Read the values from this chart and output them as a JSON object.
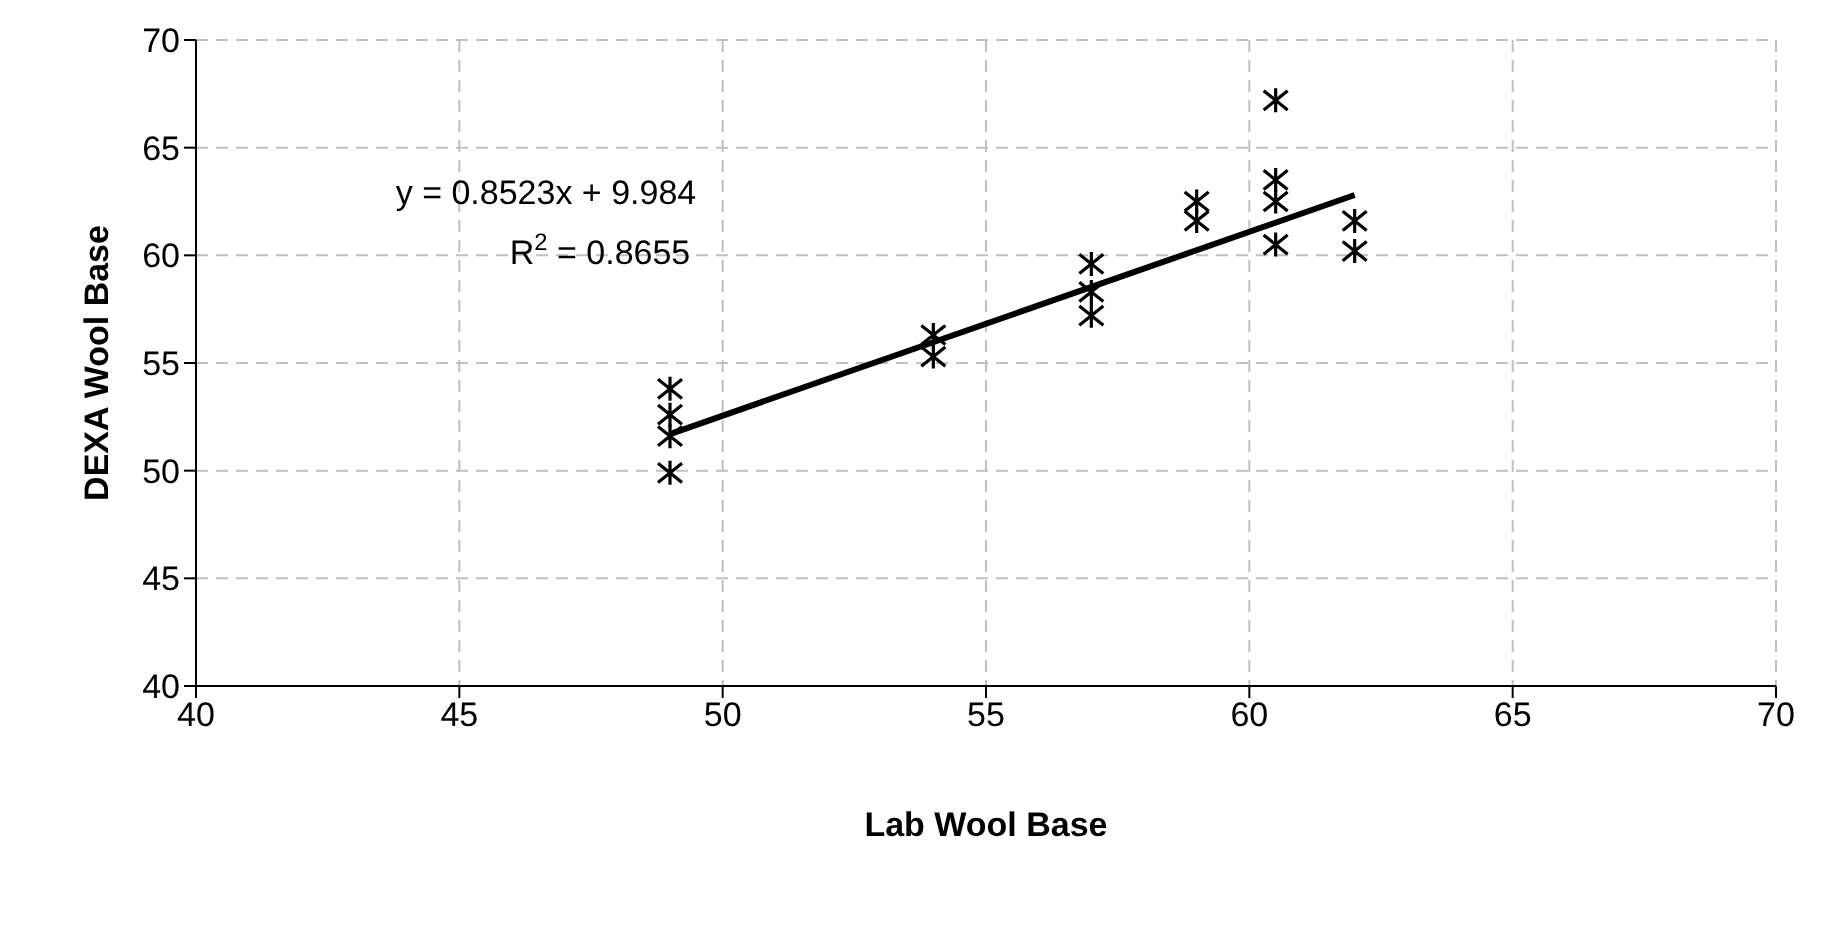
{
  "chart_data": {
    "type": "scatter",
    "xlabel": "Lab Wool Base",
    "ylabel": "DEXA Wool Base",
    "xlim": [
      40,
      70
    ],
    "xticks": [
      40,
      45,
      50,
      55,
      60,
      65,
      70
    ],
    "ylim": [
      40,
      70
    ],
    "yticks": [
      40,
      45,
      50,
      55,
      60,
      65,
      70
    ],
    "grid": true,
    "marker": "cross",
    "annotations": [
      "y = 0.8523x + 9.984",
      "R$^{2}$ = 0.8655"
    ],
    "series": [
      {
        "color": "#000000",
        "x": [
          49,
          49,
          49,
          49,
          54,
          54,
          57,
          57,
          57,
          59,
          59,
          60.5,
          60.5,
          60.5,
          60.5,
          62,
          62
        ],
        "values": [
          53.8,
          52.6,
          51.6,
          49.9,
          56.3,
          55.3,
          59.6,
          58.3,
          57.2,
          62.5,
          61.6,
          67.2,
          63.5,
          62.5,
          60.5,
          61.6,
          60.2
        ]
      },
      {
        "type": "line",
        "color": "#000000",
        "x": [
          49,
          62
        ],
        "values": [
          51.7,
          62.8
        ],
        "marker": "none"
      }
    ]
  }
}
